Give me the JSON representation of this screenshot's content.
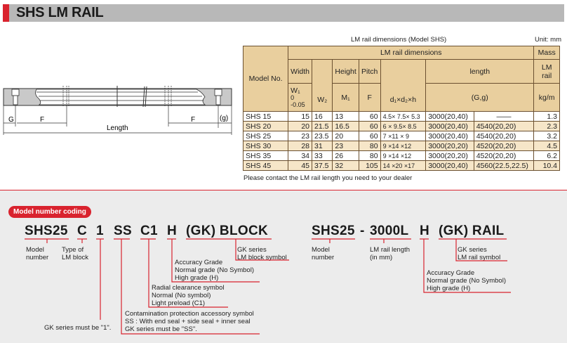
{
  "title": "SHS LM RAIL",
  "drawing": {
    "G": "G",
    "F_left": "F",
    "F_right": "F",
    "g": "(g)",
    "length": "Length"
  },
  "table": {
    "caption": "LM rail dimensions (Model SHS)",
    "unit": "Unit: mm",
    "header": {
      "model": "Model No.",
      "group": "LM rail dimensions",
      "mass": "Mass",
      "width": "Width",
      "w1": "W₁",
      "w1_tol_upper": "0",
      "w1_tol_lower": "-0.05",
      "w2": "W₂",
      "height": "Height",
      "m1": "M₁",
      "pitch": "Pitch",
      "f": "F",
      "d": "d₁×d₂×h",
      "length": "length",
      "gg": "(G,g)",
      "mass_sub": "LM rail",
      "mass_unit": "kg/m"
    },
    "rows": [
      [
        "SHS 15",
        "15",
        "16",
        "13",
        "60",
        "4.5× 7.5× 5.3",
        "3000(20,40)",
        "——",
        "1.3"
      ],
      [
        "SHS 20",
        "20",
        "21.5",
        "16.5",
        "60",
        "6 × 9.5× 8.5",
        "3000(20,40)",
        "4540(20,20)",
        "2.3"
      ],
      [
        "SHS 25",
        "23",
        "23.5",
        "20",
        "60",
        "7 ×11 × 9",
        "3000(20,40)",
        "4540(20,20)",
        "3.2"
      ],
      [
        "SHS 30",
        "28",
        "31",
        "23",
        "80",
        "9 ×14 ×12",
        "3000(20,20)",
        "4520(20,20)",
        "4.5"
      ],
      [
        "SHS 35",
        "34",
        "33",
        "26",
        "80",
        "9 ×14 ×12",
        "3000(20,20)",
        "4520(20,20)",
        "6.2"
      ],
      [
        "SHS 45",
        "45",
        "37.5",
        "32",
        "105",
        "14 ×20 ×17",
        "3000(20,40)",
        "4560(22.5,22.5)",
        "10.4"
      ]
    ],
    "note": "Please contact the LM rail length you need to your dealer"
  },
  "coding": {
    "badge": "Model number coding",
    "block": {
      "parts": [
        "SHS25",
        "C",
        "1",
        "SS",
        "C1",
        "H",
        "(GK) BLOCK"
      ],
      "model": [
        "Model",
        "number"
      ],
      "type": [
        "Type of",
        "LM block"
      ],
      "gk_symbol": [
        "GK series",
        "LM block symbol"
      ],
      "accuracy": [
        "Accuracy Grade",
        "Normal grade (No Symbol)",
        "High grade (H)"
      ],
      "clearance": [
        "Radial clearance symbol",
        "Normal (No symbol)",
        "Light preload (C1)"
      ],
      "contamination": [
        "Contamination protection accessory symbol",
        "SS : With end seal + side seal + inner seal",
        "GK series must be \"SS\"."
      ],
      "gk_one": "GK series must be \"1\"."
    },
    "rail": {
      "parts": [
        "SHS25",
        "-",
        "3000L",
        "H",
        "(GK) RAIL"
      ],
      "model": [
        "Model",
        "number"
      ],
      "length": [
        "LM rail length",
        "(in mm)"
      ],
      "gk_symbol": [
        "GK series",
        "LM rail symbol"
      ],
      "accuracy": [
        "Accuracy Grade",
        "Normal grade (No Symbol)",
        "High grade (H)"
      ]
    }
  }
}
